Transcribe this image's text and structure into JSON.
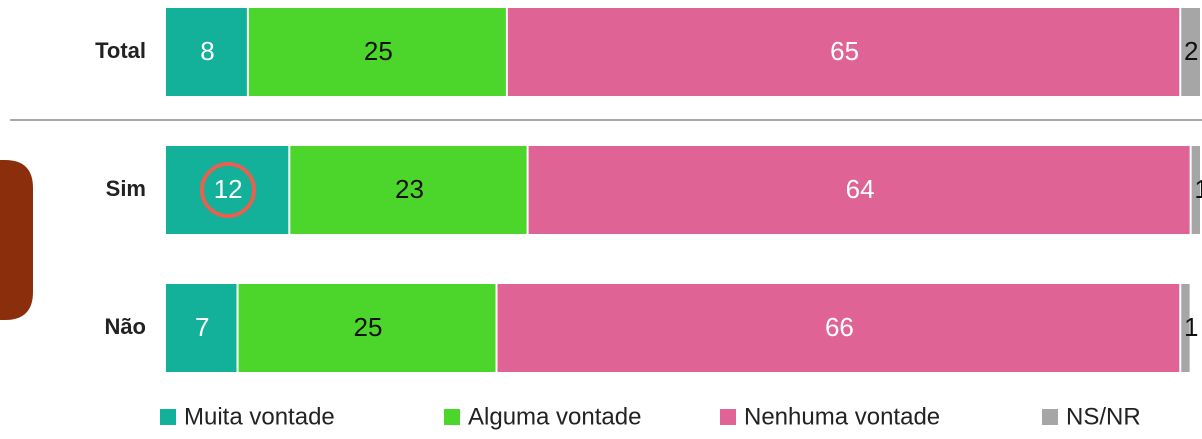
{
  "chart_data": {
    "type": "bar",
    "orientation": "horizontal",
    "stacked": true,
    "categories": [
      "Total",
      "Sim",
      "Não"
    ],
    "series": [
      {
        "name": "Muita vontade",
        "color": "#13b09a",
        "values": [
          8,
          12,
          7
        ]
      },
      {
        "name": "Alguma vontade",
        "color": "#4cd62b",
        "values": [
          25,
          23,
          25
        ]
      },
      {
        "name": "Nenhuma vontade",
        "color": "#e06396",
        "values": [
          65,
          64,
          66
        ]
      },
      {
        "name": "NS/NR",
        "color": "#a6a6a6",
        "values": [
          2,
          1,
          1
        ]
      }
    ],
    "xlim": [
      0,
      100
    ]
  }
}
